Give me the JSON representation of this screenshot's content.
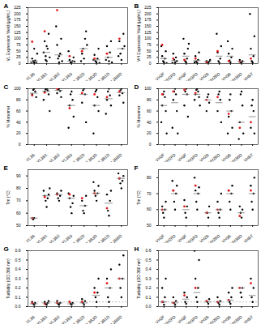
{
  "chart_data": [
    {
      "type": "strip",
      "title": "A",
      "y_label": "VL Expression Yield (μg/mL)",
      "color": "#000000",
      "highlight_color": "#e41a1c",
      "categories": [
        "VL3B",
        "VL3B1",
        "VL3B2",
        "VL3B3",
        "VL3B2D",
        "VL3B3D",
        "VL3B1D",
        "VL3BBD"
      ],
      "values": [
        [
          5,
          8,
          12,
          20,
          3,
          2,
          40,
          60,
          10
        ],
        [
          10,
          30,
          60,
          90,
          120,
          45,
          25,
          70,
          15
        ],
        [
          5,
          20,
          40,
          75,
          100,
          150,
          10,
          30
        ],
        [
          2,
          5,
          10,
          15,
          25,
          50,
          8
        ],
        [
          20,
          60,
          100,
          40,
          130,
          10,
          75
        ],
        [
          5,
          10,
          20,
          35,
          60,
          15,
          3
        ],
        [
          10,
          25,
          45,
          70,
          90,
          15,
          5
        ],
        [
          15,
          40,
          60,
          90,
          120,
          30,
          70
        ]
      ],
      "highlight_values": [
        [
          88
        ],
        [
          130
        ],
        [
          215
        ],
        [
          30
        ],
        [
          50
        ],
        [
          20
        ],
        [
          40
        ],
        [
          100
        ]
      ],
      "medians": [
        10,
        45,
        35,
        10,
        60,
        15,
        25,
        60
      ],
      "ylim": [
        0,
        225
      ],
      "yticks": [
        0,
        25,
        50,
        75,
        100,
        125,
        150,
        175,
        200,
        225
      ]
    },
    {
      "type": "strip",
      "title": "B",
      "y_label": "VH Expression Yield (μg/mL)",
      "color": "#000000",
      "highlight_color": "#e41a1c",
      "categories": [
        "VH2F",
        "VH2FD",
        "VH3F",
        "VH3FD",
        "VH2B",
        "VH2BD",
        "VH3B",
        "VH3BD",
        "VHBT"
      ],
      "values": [
        [
          5,
          10,
          20,
          30,
          50,
          70,
          2
        ],
        [
          5,
          15,
          25,
          40,
          10,
          3
        ],
        [
          5,
          10,
          20,
          40,
          60,
          100,
          80
        ],
        [
          3,
          8,
          15,
          30,
          45,
          5
        ],
        [
          2,
          5,
          8,
          10,
          15
        ],
        [
          3,
          10,
          20,
          45,
          70,
          120
        ],
        [
          5,
          12,
          25,
          40,
          60,
          90
        ],
        [
          3,
          5,
          10,
          15
        ],
        [
          5,
          10,
          30,
          60,
          110,
          200
        ]
      ],
      "highlight_values": [
        [
          75
        ],
        [
          20
        ],
        [
          15
        ],
        [
          20
        ],
        [
          5
        ],
        [
          50
        ],
        [
          10
        ],
        [
          8
        ],
        [
          20
        ]
      ],
      "medians": [
        20,
        12,
        30,
        12,
        8,
        30,
        30,
        8,
        35
      ],
      "ylim": [
        0,
        225
      ],
      "yticks": [
        0,
        25,
        50,
        75,
        100,
        125,
        150,
        175,
        200,
        225
      ]
    },
    {
      "type": "strip",
      "title": "C",
      "y_label": "% Monomer",
      "color": "#000000",
      "highlight_color": "#e41a1c",
      "categories": [
        "VL3B",
        "VL3B1",
        "VL3B2",
        "VL3B3",
        "VL3B2D",
        "VL3B3D",
        "VL3B1D",
        "VL3BBD"
      ],
      "values": [
        [
          100,
          98,
          95,
          90,
          85
        ],
        [
          100,
          99,
          97,
          95,
          90,
          80,
          60
        ],
        [
          100,
          98,
          96,
          92,
          85
        ],
        [
          95,
          90,
          80,
          70,
          50,
          30
        ],
        [
          100,
          97,
          90,
          75,
          40
        ],
        [
          98,
          95,
          85,
          70,
          60,
          20
        ],
        [
          100,
          95,
          88,
          80,
          70,
          55
        ],
        [
          100,
          97,
          92,
          88,
          75
        ]
      ],
      "highlight_values": [
        [
          88
        ],
        [
          93
        ],
        [
          100
        ],
        [
          65
        ],
        [
          92
        ],
        [
          90
        ],
        [
          85
        ],
        [
          95
        ]
      ],
      "medians": [
        92,
        95,
        97,
        70,
        90,
        70,
        82,
        93
      ],
      "ylim": [
        0,
        100
      ],
      "yticks": [
        0,
        20,
        40,
        60,
        80,
        100
      ]
    },
    {
      "type": "strip",
      "title": "D",
      "y_label": "% Monomer",
      "color": "#000000",
      "highlight_color": "#e41a1c",
      "categories": [
        "VH2F",
        "VH2FD",
        "VH3F",
        "VH3FD",
        "VH2B",
        "VH2BD",
        "VH3B",
        "VH3BD",
        "VHBT"
      ],
      "values": [
        [
          95,
          90,
          85,
          70,
          60,
          40,
          20
        ],
        [
          100,
          95,
          90,
          80,
          60,
          30,
          20
        ],
        [
          100,
          95,
          90,
          70,
          50
        ],
        [
          100,
          98,
          95,
          90,
          85,
          80,
          70
        ],
        [
          90,
          85,
          75,
          60
        ],
        [
          95,
          90,
          80,
          60,
          40
        ],
        [
          90,
          80,
          60,
          50,
          30,
          20
        ],
        [
          95,
          90,
          70,
          40,
          20,
          10
        ],
        [
          80,
          70,
          60,
          30,
          20
        ]
      ],
      "highlight_values": [
        [
          90
        ],
        [
          95
        ],
        [
          98
        ],
        [
          92
        ],
        [
          80
        ],
        [
          85
        ],
        [
          55
        ],
        [
          30
        ],
        [
          40
        ]
      ],
      "medians": [
        70,
        75,
        90,
        90,
        80,
        75,
        60,
        40,
        50
      ],
      "ylim": [
        0,
        100
      ],
      "yticks": [
        0,
        20,
        40,
        60,
        80,
        100
      ]
    },
    {
      "type": "strip",
      "title": "E",
      "y_label": "Tm (°C)",
      "color": "#000000",
      "highlight_color": "#e41a1c",
      "categories": [
        "VL3B",
        "VL3B1",
        "VL3B2",
        "VL3B3",
        "VL3B2D",
        "VL3B3D",
        "VL3B1D",
        "VL3BBD"
      ],
      "values": [
        [
          56,
          55
        ],
        [
          65,
          70,
          72,
          74,
          75,
          78,
          80
        ],
        [
          70,
          72,
          74,
          76,
          78
        ],
        [
          60,
          65,
          68,
          72,
          74,
          76
        ],
        [
          60,
          62,
          66,
          70,
          74
        ],
        [
          70,
          74,
          76,
          78,
          82,
          85
        ],
        [
          58,
          62,
          70,
          75,
          78
        ],
        [
          80,
          84,
          86,
          88,
          90,
          92
        ]
      ],
      "highlight_values": [
        [
          56
        ],
        [
          73
        ],
        [
          75
        ],
        [
          75
        ],
        [
          72
        ],
        [
          76
        ],
        [
          64
        ],
        [
          88
        ]
      ],
      "medians": [
        56,
        74,
        75,
        72,
        66,
        76,
        68,
        88
      ],
      "ylim": [
        50,
        95
      ],
      "yticks": [
        50,
        60,
        70,
        80,
        90
      ]
    },
    {
      "type": "strip",
      "title": "F",
      "y_label": "Tm (°C)",
      "color": "#000000",
      "highlight_color": "#e41a1c",
      "categories": [
        "VH2F",
        "VH2FD",
        "VH3F",
        "VH3FD",
        "VH2B",
        "VH2BD",
        "VH3B",
        "VH3BD",
        "VHBT"
      ],
      "values": [
        [
          55,
          58,
          60,
          62,
          65
        ],
        [
          60,
          65,
          70,
          72,
          75,
          78
        ],
        [
          55,
          58,
          62,
          66
        ],
        [
          60,
          65,
          70,
          72,
          74,
          80
        ],
        [
          55,
          58,
          62
        ],
        [
          55,
          58,
          60,
          65,
          70
        ],
        [
          60,
          65,
          70,
          72,
          75
        ],
        [
          55,
          58,
          60,
          62
        ],
        [
          60,
          65,
          70,
          75,
          80
        ]
      ],
      "highlight_values": [
        [
          60
        ],
        [
          72
        ],
        [
          62
        ],
        [
          75
        ],
        [
          58
        ],
        [
          60
        ],
        [
          72
        ],
        [
          56
        ],
        [
          72
        ]
      ],
      "medians": [
        60,
        70,
        60,
        70,
        58,
        60,
        70,
        58,
        70
      ],
      "ylim": [
        50,
        85
      ],
      "yticks": [
        50,
        60,
        70,
        80
      ]
    },
    {
      "type": "strip",
      "title": "G",
      "y_label": "Turbidity (OD 360 nm)",
      "color": "#000000",
      "highlight_color": "#e41a1c",
      "threshold": 0.05,
      "categories": [
        "VL3B",
        "VL3B1",
        "VL3B2",
        "VL3B3",
        "VL3B2D",
        "VL3B3D",
        "VL3B1D",
        "VL3BBD"
      ],
      "values": [
        [
          0.02,
          0.03,
          0.04,
          0.05
        ],
        [
          0.02,
          0.03,
          0.04,
          0.05,
          0.06
        ],
        [
          0.02,
          0.03,
          0.04,
          0.06
        ],
        [
          0.02,
          0.03,
          0.04,
          0.05
        ],
        [
          0.02,
          0.04,
          0.06,
          0.08
        ],
        [
          0.05,
          0.1,
          0.15,
          0.2,
          0.3
        ],
        [
          0.05,
          0.1,
          0.2,
          0.3,
          0.4
        ],
        [
          0.1,
          0.2,
          0.3,
          0.45,
          0.55
        ]
      ],
      "highlight_values": [
        [
          0.04
        ],
        [
          0.03
        ],
        [
          0.04
        ],
        [
          0.05
        ],
        [
          0.05
        ],
        [
          0.15
        ],
        [
          0.25
        ],
        [
          0.3
        ]
      ],
      "medians": [
        0.03,
        0.04,
        0.04,
        0.03,
        0.04,
        0.12,
        0.2,
        0.3
      ],
      "ylim": [
        0,
        0.6
      ],
      "yticks": [
        {
          "value": 0,
          "label": "0.0"
        },
        0.1,
        0.2,
        0.3,
        0.4,
        0.5,
        0.6
      ]
    },
    {
      "type": "strip",
      "title": "H",
      "y_label": "Turbidity (OD 360 nm)",
      "color": "#000000",
      "highlight_color": "#e41a1c",
      "threshold": 0.05,
      "categories": [
        "VH2F",
        "VH2FD",
        "VH3F",
        "VH3FD",
        "VH2B",
        "VH2BD",
        "VH3B",
        "VH3BD",
        "VHBT"
      ],
      "values": [
        [
          0.02,
          0.05,
          0.1,
          0.2,
          0.3
        ],
        [
          0.02,
          0.04,
          0.06,
          0.1
        ],
        [
          0.03,
          0.05,
          0.1,
          0.15
        ],
        [
          0.05,
          0.1,
          0.2,
          0.3,
          0.5,
          0.6
        ],
        [
          0.03,
          0.05,
          0.08
        ],
        [
          0.02,
          0.04,
          0.06,
          0.1
        ],
        [
          0.03,
          0.05,
          0.1,
          0.15,
          0.2
        ],
        [
          0.1,
          0.15,
          0.2
        ],
        [
          0.05,
          0.1,
          0.2,
          0.3
        ]
      ],
      "highlight_values": [
        [
          0.05
        ],
        [
          0.04
        ],
        [
          0.12
        ],
        [
          0.2
        ],
        [
          0.06
        ],
        [
          0.05
        ],
        [
          0.07
        ],
        [
          0.2
        ],
        [
          0.25
        ]
      ],
      "medians": [
        0.05,
        0.04,
        0.08,
        0.15,
        0.05,
        0.05,
        0.07,
        0.2,
        0.12
      ],
      "ylim": [
        0,
        0.6
      ],
      "yticks": [
        {
          "value": 0,
          "label": "0.0"
        },
        0.1,
        0.2,
        0.3,
        0.4,
        0.5,
        0.6
      ]
    }
  ]
}
